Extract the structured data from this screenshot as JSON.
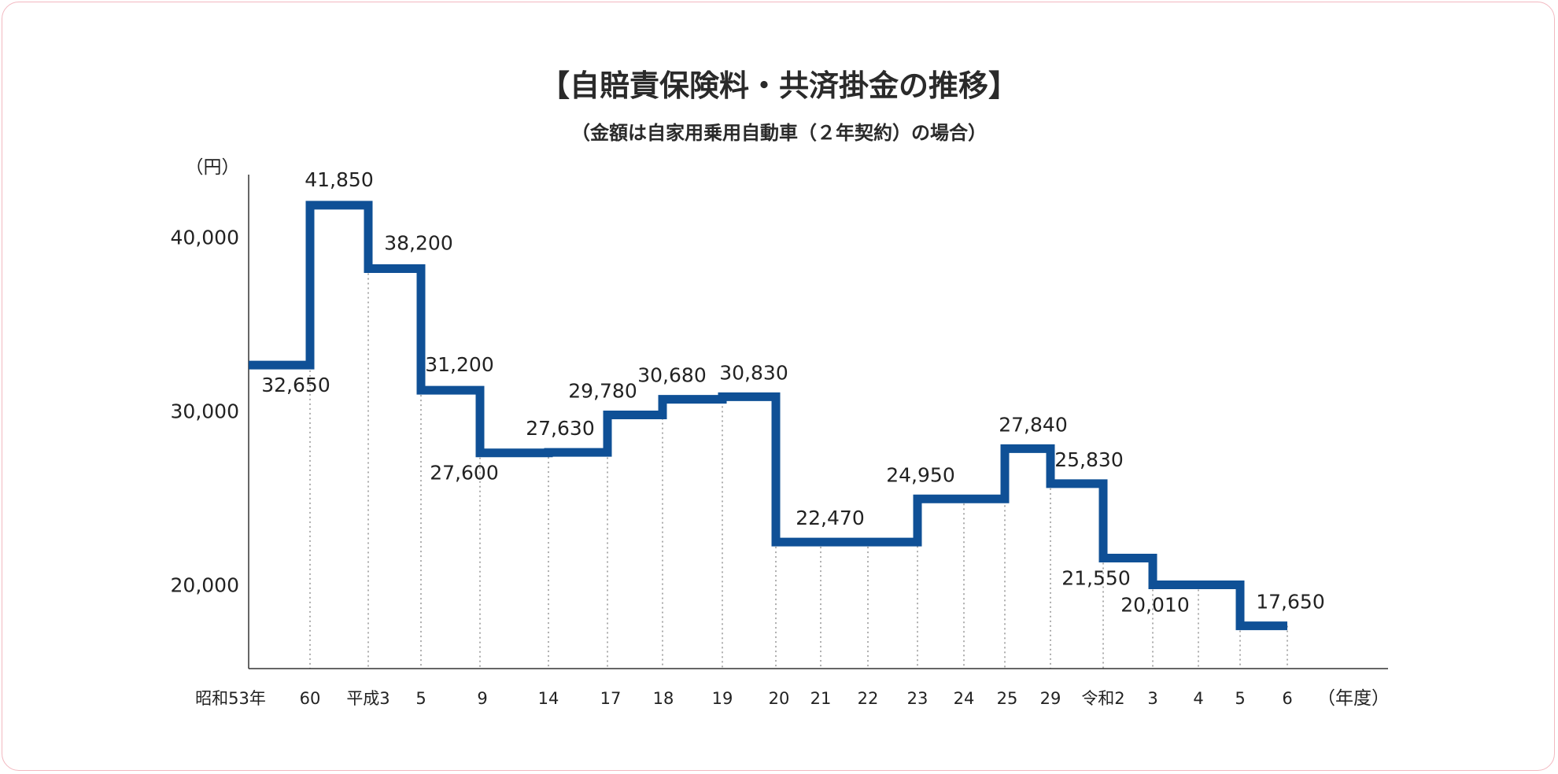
{
  "chart_data": {
    "type": "line",
    "style": "step",
    "title": "【自賠責保険料・共済掛金の推移】",
    "subtitle": "（金額は自家用乗用自動車（２年契約）の場合）",
    "ylabel": "（円）",
    "xlabel": "（年度）",
    "y_ticks": [
      "40,000",
      "30,000",
      "20,000"
    ],
    "y_tick_values": [
      40000,
      30000,
      20000
    ],
    "ylim": [
      15000,
      44000
    ],
    "line_color": "#0f5096",
    "x_ticks": [
      "昭和53年",
      "60",
      "平成3",
      "5",
      "9",
      "14",
      "17",
      "18",
      "19",
      "20",
      "21",
      "22",
      "23",
      "24",
      "25",
      "29",
      "令和2",
      "3",
      "4",
      "5",
      "6"
    ],
    "steps": [
      {
        "year": "昭和53年",
        "value": 32650,
        "label": "32,650"
      },
      {
        "year": "60",
        "value": 41850,
        "label": "41,850"
      },
      {
        "year": "平成3",
        "value": 38200,
        "label": "38,200"
      },
      {
        "year": "5",
        "value": 31200,
        "label": "31,200"
      },
      {
        "year": "9",
        "value": 27600,
        "label": "27,600"
      },
      {
        "year": "14",
        "value": 27630,
        "label": "27,630"
      },
      {
        "year": "17",
        "value": 29780,
        "label": "29,780"
      },
      {
        "year": "18",
        "value": 30680,
        "label": "30,680"
      },
      {
        "year": "19",
        "value": 30830,
        "label": "30,830"
      },
      {
        "year": "20",
        "value": 22470,
        "label": "22,470"
      },
      {
        "year": "23",
        "value": 24950,
        "label": "24,950"
      },
      {
        "year": "25",
        "value": 27840,
        "label": "27,840"
      },
      {
        "year": "29",
        "value": 25830,
        "label": "25,830"
      },
      {
        "year": "令和2",
        "value": 21550,
        "label": "21,550"
      },
      {
        "year": "3",
        "value": 20010,
        "label": "20,010"
      },
      {
        "year": "5",
        "value": 17650,
        "label": "17,650"
      },
      {
        "year": "6",
        "value": 17650
      }
    ]
  }
}
